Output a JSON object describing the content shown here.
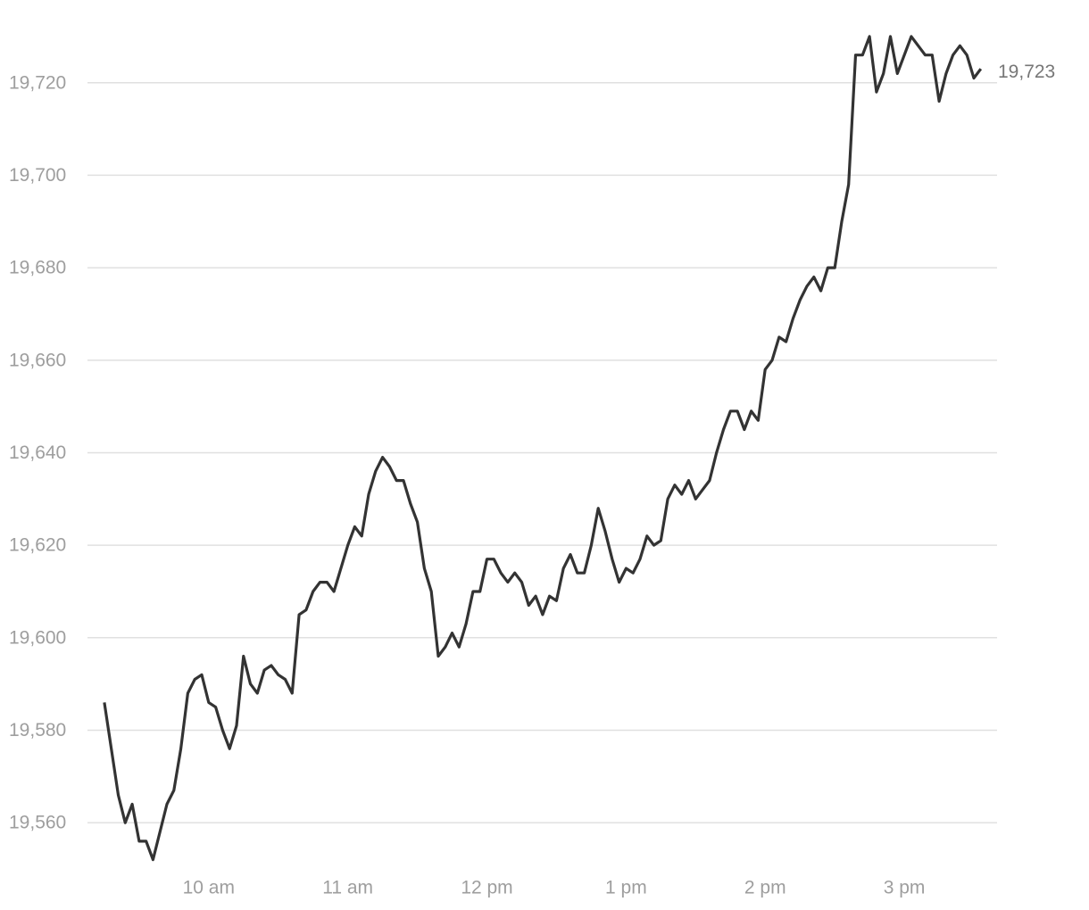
{
  "chart_data": {
    "type": "line",
    "x": [
      555,
      558,
      561,
      564,
      567,
      570,
      573,
      576,
      579,
      582,
      585,
      588,
      591,
      594,
      597,
      600,
      603,
      606,
      609,
      612,
      615,
      618,
      621,
      624,
      627,
      630,
      633,
      636,
      639,
      642,
      645,
      648,
      651,
      654,
      657,
      660,
      663,
      666,
      669,
      672,
      675,
      678,
      681,
      684,
      687,
      690,
      693,
      696,
      699,
      702,
      705,
      708,
      711,
      714,
      717,
      720,
      723,
      726,
      729,
      732,
      735,
      738,
      741,
      744,
      747,
      750,
      753,
      756,
      759,
      762,
      765,
      768,
      771,
      774,
      777,
      780,
      783,
      786,
      789,
      792,
      795,
      798,
      801,
      804,
      807,
      810,
      813,
      816,
      819,
      822,
      825,
      828,
      831,
      834,
      837,
      840,
      843,
      846,
      849,
      852,
      855,
      858,
      861,
      864,
      867,
      870,
      873,
      876,
      879,
      882,
      885,
      888,
      891,
      894,
      897,
      900,
      903,
      906,
      909,
      912,
      915,
      918,
      921,
      924,
      927,
      930,
      933
    ],
    "series": [
      {
        "color": "#333333",
        "values": [
          19586,
          19576,
          19566,
          19560,
          19564,
          19556,
          19556,
          19552,
          19558,
          19564,
          19567,
          19576,
          19588,
          19591,
          19592,
          19586,
          19585,
          19580,
          19576,
          19581,
          19596,
          19590,
          19588,
          19593,
          19594,
          19592,
          19591,
          19588,
          19605,
          19606,
          19610,
          19612,
          19612,
          19610,
          19615,
          19620,
          19624,
          19622,
          19631,
          19636,
          19639,
          19637,
          19634,
          19634,
          19629,
          19625,
          19615,
          19610,
          19596,
          19598,
          19601,
          19598,
          19603,
          19610,
          19610,
          19617,
          19617,
          19614,
          19612,
          19614,
          19612,
          19607,
          19609,
          19605,
          19609,
          19608,
          19615,
          19618,
          19614,
          19614,
          19620,
          19628,
          19623,
          19617,
          19612,
          19615,
          19614,
          19617,
          19622,
          19620,
          19621,
          19630,
          19633,
          19631,
          19634,
          19630,
          19632,
          19634,
          19640,
          19645,
          19649,
          19649,
          19645,
          19649,
          19647,
          19658,
          19660,
          19665,
          19664,
          19669,
          19673,
          19676,
          19678,
          19675,
          19680,
          19680,
          19690,
          19698,
          19726,
          19726,
          19730,
          19718,
          19722,
          19730,
          19722,
          19726,
          19730,
          19728,
          19726,
          19726,
          19716,
          19722,
          19726,
          19728,
          19726,
          19721,
          19723
        ]
      }
    ],
    "xlim": [
      510,
      940
    ],
    "xticks": [
      {
        "value": 600,
        "label": "10 am"
      },
      {
        "value": 660,
        "label": "11 am"
      },
      {
        "value": 720,
        "label": "12 pm"
      },
      {
        "value": 780,
        "label": "1 pm"
      },
      {
        "value": 840,
        "label": "2 pm"
      },
      {
        "value": 900,
        "label": "3 pm"
      }
    ],
    "ylim": [
      19550,
      19735
    ],
    "yticks": [
      {
        "value": 19560,
        "label": "19,560"
      },
      {
        "value": 19580,
        "label": "19,580"
      },
      {
        "value": 19600,
        "label": "19,600"
      },
      {
        "value": 19620,
        "label": "19,620"
      },
      {
        "value": 19640,
        "label": "19,640"
      },
      {
        "value": 19660,
        "label": "19,660"
      },
      {
        "value": 19680,
        "label": "19,680"
      },
      {
        "value": 19700,
        "label": "19,700"
      },
      {
        "value": 19720,
        "label": "19,720"
      }
    ],
    "grid": true,
    "annotation": {
      "label": "19,723",
      "value": 19723
    }
  }
}
